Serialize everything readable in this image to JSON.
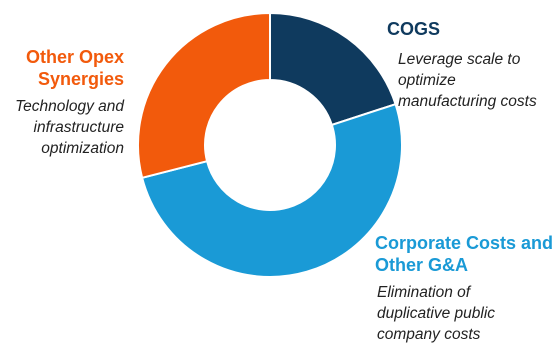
{
  "chart_data": {
    "type": "pie",
    "variant": "donut",
    "series": [
      {
        "name": "COGS",
        "value": 20,
        "color": "#0f3a5e",
        "description_lines": [
          "Leverage scale to",
          "optimize",
          "manufacturing costs"
        ]
      },
      {
        "name": "Corporate Costs and Other G&A",
        "value": 51,
        "color": "#1a9ad6",
        "title_lines": [
          "Corporate Costs and",
          "Other G&A"
        ],
        "description_lines": [
          "Elimination of",
          "duplicative public",
          "company costs"
        ]
      },
      {
        "name": "Other Opex Synergies",
        "value": 29,
        "color": "#f25a0c",
        "title_lines": [
          "Other Opex",
          "Synergies"
        ],
        "description_lines": [
          "Technology and",
          "infrastructure",
          "optimization"
        ]
      }
    ],
    "start_angle": "12 o'clock",
    "direction": "clockwise"
  }
}
